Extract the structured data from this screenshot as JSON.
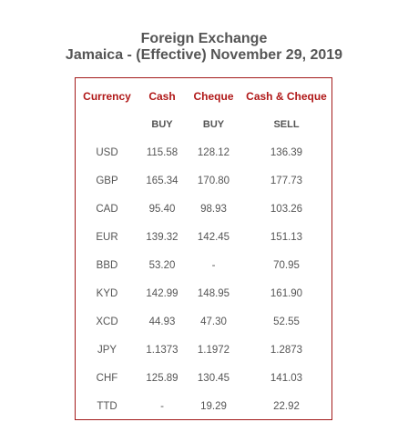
{
  "title": {
    "line1": "Foreign Exchange",
    "line2": "Jamaica - (Effective) November 29, 2019"
  },
  "colors": {
    "header_text": "#b01818",
    "border": "#a31a1a",
    "body_text": "#555555"
  },
  "table": {
    "headers": [
      "Currency",
      "Cash",
      "Cheque",
      "Cash & Cheque"
    ],
    "subheaders": [
      "",
      "BUY",
      "BUY",
      "SELL"
    ],
    "rows": [
      {
        "currency": "USD",
        "cash_buy": "115.58",
        "cheque_buy": "128.12",
        "sell": "136.39"
      },
      {
        "currency": "GBP",
        "cash_buy": "165.34",
        "cheque_buy": "170.80",
        "sell": "177.73"
      },
      {
        "currency": "CAD",
        "cash_buy": "95.40",
        "cheque_buy": "98.93",
        "sell": "103.26"
      },
      {
        "currency": "EUR",
        "cash_buy": "139.32",
        "cheque_buy": "142.45",
        "sell": "151.13"
      },
      {
        "currency": "BBD",
        "cash_buy": "53.20",
        "cheque_buy": "-",
        "sell": "70.95"
      },
      {
        "currency": "KYD",
        "cash_buy": "142.99",
        "cheque_buy": "148.95",
        "sell": "161.90"
      },
      {
        "currency": "XCD",
        "cash_buy": "44.93",
        "cheque_buy": "47.30",
        "sell": "52.55"
      },
      {
        "currency": "JPY",
        "cash_buy": "1.1373",
        "cheque_buy": "1.1972",
        "sell": "1.2873"
      },
      {
        "currency": "CHF",
        "cash_buy": "125.89",
        "cheque_buy": "130.45",
        "sell": "141.03"
      },
      {
        "currency": "TTD",
        "cash_buy": "-",
        "cheque_buy": "19.29",
        "sell": "22.92"
      }
    ]
  }
}
